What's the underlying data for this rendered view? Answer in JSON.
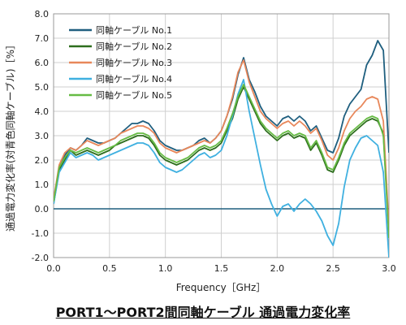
{
  "chart_data": {
    "type": "line",
    "title": "PORT1～PORT2間同軸ケーブル 通過電力変化率",
    "xlabel": "Frequency［GHz］",
    "ylabel": "通過電力変化率(対青色同軸ケーブル)［%］",
    "xlim": [
      0.0,
      3.0
    ],
    "ylim": [
      -2.0,
      8.0
    ],
    "xticks": [
      "0.0",
      "0.5",
      "1.0",
      "1.5",
      "2.0",
      "2.5",
      "3.0"
    ],
    "yticks": [
      "-2.0",
      "-1.0",
      "0.0",
      "1.0",
      "2.0",
      "3.0",
      "4.0",
      "5.0",
      "6.0",
      "7.0",
      "8.0"
    ],
    "grid": true,
    "legend_position": "top-left",
    "x": [
      0.0,
      0.05,
      0.1,
      0.15,
      0.2,
      0.25,
      0.3,
      0.35,
      0.4,
      0.45,
      0.5,
      0.55,
      0.6,
      0.65,
      0.7,
      0.75,
      0.8,
      0.85,
      0.9,
      0.95,
      1.0,
      1.05,
      1.1,
      1.15,
      1.2,
      1.25,
      1.3,
      1.35,
      1.4,
      1.45,
      1.5,
      1.55,
      1.6,
      1.65,
      1.7,
      1.75,
      1.8,
      1.85,
      1.9,
      1.95,
      2.0,
      2.05,
      2.1,
      2.15,
      2.2,
      2.25,
      2.3,
      2.35,
      2.4,
      2.45,
      2.5,
      2.55,
      2.6,
      2.65,
      2.7,
      2.75,
      2.8,
      2.85,
      2.9,
      2.95,
      3.0
    ],
    "series": [
      {
        "name": "同軸ケーブル No.1",
        "color": "#1f5f7f",
        "values": [
          0.3,
          1.7,
          2.2,
          2.5,
          2.4,
          2.6,
          2.9,
          2.8,
          2.7,
          2.7,
          2.8,
          2.9,
          3.1,
          3.3,
          3.5,
          3.5,
          3.6,
          3.5,
          3.2,
          2.8,
          2.6,
          2.5,
          2.4,
          2.4,
          2.5,
          2.6,
          2.8,
          2.9,
          2.7,
          2.9,
          3.2,
          3.8,
          4.5,
          5.5,
          6.2,
          5.3,
          4.8,
          4.2,
          3.8,
          3.6,
          3.4,
          3.7,
          3.8,
          3.6,
          3.8,
          3.6,
          3.2,
          3.4,
          2.9,
          2.4,
          2.3,
          2.9,
          3.8,
          4.3,
          4.6,
          4.9,
          5.9,
          6.3,
          6.9,
          6.5,
          2.3
        ]
      },
      {
        "name": "同軸ケーブル No.2",
        "color": "#2e6e1e",
        "values": [
          0.2,
          1.6,
          2.0,
          2.4,
          2.2,
          2.3,
          2.4,
          2.3,
          2.2,
          2.3,
          2.4,
          2.6,
          2.7,
          2.8,
          2.9,
          3.0,
          3.0,
          2.9,
          2.6,
          2.2,
          2.0,
          1.9,
          1.8,
          1.9,
          2.0,
          2.2,
          2.4,
          2.5,
          2.4,
          2.5,
          2.7,
          3.2,
          3.7,
          4.5,
          5.0,
          4.5,
          4.0,
          3.5,
          3.2,
          3.0,
          2.8,
          3.0,
          3.1,
          2.9,
          3.0,
          2.9,
          2.4,
          2.7,
          2.2,
          1.6,
          1.5,
          2.0,
          2.6,
          3.0,
          3.2,
          3.4,
          3.6,
          3.7,
          3.6,
          3.1,
          -1.0
        ]
      },
      {
        "name": "同軸ケーブル No.3",
        "color": "#e8875a",
        "values": [
          0.4,
          1.8,
          2.3,
          2.5,
          2.4,
          2.6,
          2.8,
          2.7,
          2.6,
          2.7,
          2.8,
          2.9,
          3.1,
          3.2,
          3.3,
          3.4,
          3.4,
          3.3,
          3.1,
          2.7,
          2.5,
          2.4,
          2.3,
          2.4,
          2.5,
          2.6,
          2.7,
          2.8,
          2.7,
          2.9,
          3.2,
          3.8,
          4.6,
          5.6,
          6.1,
          5.2,
          4.6,
          4.0,
          3.7,
          3.5,
          3.3,
          3.5,
          3.6,
          3.4,
          3.6,
          3.4,
          3.1,
          3.3,
          2.8,
          2.2,
          2.0,
          2.5,
          3.2,
          3.7,
          4.0,
          4.2,
          4.5,
          4.6,
          4.5,
          3.6,
          -0.8
        ]
      },
      {
        "name": "同軸ケーブル No.4",
        "color": "#3fb0e0",
        "values": [
          0.2,
          1.5,
          1.9,
          2.3,
          2.1,
          2.2,
          2.3,
          2.2,
          2.0,
          2.1,
          2.2,
          2.3,
          2.4,
          2.5,
          2.6,
          2.7,
          2.7,
          2.6,
          2.3,
          1.9,
          1.7,
          1.6,
          1.5,
          1.6,
          1.8,
          2.0,
          2.2,
          2.3,
          2.1,
          2.2,
          2.4,
          3.0,
          3.8,
          4.7,
          5.3,
          4.0,
          2.9,
          1.8,
          0.8,
          0.2,
          -0.3,
          0.1,
          0.2,
          -0.1,
          0.2,
          0.4,
          0.2,
          -0.1,
          -0.5,
          -1.1,
          -1.5,
          -0.6,
          0.9,
          2.0,
          2.5,
          2.9,
          3.0,
          2.8,
          2.6,
          1.5,
          -2.0
        ]
      },
      {
        "name": "同軸ケーブル No.5",
        "color": "#66bb44",
        "values": [
          0.3,
          1.7,
          2.1,
          2.4,
          2.3,
          2.4,
          2.5,
          2.4,
          2.3,
          2.4,
          2.5,
          2.6,
          2.8,
          2.9,
          3.0,
          3.1,
          3.1,
          3.0,
          2.7,
          2.3,
          2.1,
          2.0,
          1.9,
          2.0,
          2.1,
          2.3,
          2.5,
          2.6,
          2.5,
          2.6,
          2.8,
          3.3,
          3.9,
          4.6,
          5.1,
          4.6,
          4.1,
          3.6,
          3.3,
          3.1,
          2.9,
          3.1,
          3.2,
          3.0,
          3.1,
          3.0,
          2.5,
          2.8,
          2.3,
          1.7,
          1.6,
          2.1,
          2.7,
          3.1,
          3.3,
          3.5,
          3.7,
          3.8,
          3.7,
          3.0,
          -1.2
        ]
      }
    ]
  }
}
